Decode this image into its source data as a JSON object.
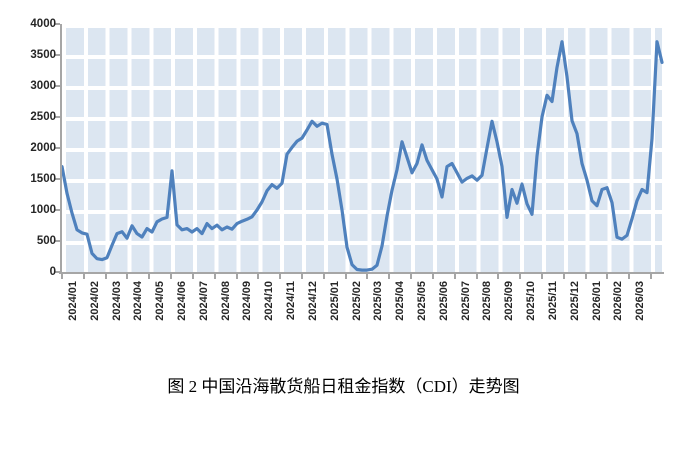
{
  "figure": {
    "caption": "图 2 中国沿海散货船日租金指数（CDI）走势图"
  },
  "colors": {
    "line": "#4F81BD",
    "plot_fill": "#DCE6F1",
    "gridline": "#FFFFFF",
    "axis": "#A6A6A6",
    "tick_label": "#262626"
  },
  "chart_data": {
    "type": "line",
    "title": "图 2 中国沿海散货船日租金指数（CDI）走势图",
    "series_name": "CDI",
    "x_tick_labels": [
      "2024/01",
      "2024/02",
      "2024/03",
      "2024/04",
      "2024/05",
      "2024/06",
      "2024/07",
      "2024/08",
      "2024/09",
      "2024/10",
      "2024/11",
      "2024/12",
      "2025/01",
      "2025/02",
      "2025/03",
      "2025/04",
      "2025/05",
      "2025/06",
      "2025/07",
      "2025/08",
      "2025/09",
      "2025/10",
      "2025/11",
      "2025/12",
      "2026/01",
      "2026/02",
      "2026/03"
    ],
    "y_tick_labels": [
      "0",
      "500",
      "1000",
      "1500",
      "2000",
      "2500",
      "3000",
      "3500",
      "4000"
    ],
    "ylim": [
      0,
      4000
    ],
    "y_step": 500,
    "x_unit": "week",
    "legend": "none",
    "grid": "white gridlines on light blue plot fill, vertical per month, horizontal per 500",
    "values": [
      1700,
      1270,
      950,
      680,
      630,
      610,
      300,
      215,
      200,
      230,
      430,
      620,
      650,
      545,
      745,
      620,
      565,
      700,
      645,
      810,
      855,
      880,
      1630,
      760,
      680,
      700,
      645,
      700,
      620,
      780,
      700,
      755,
      680,
      725,
      690,
      780,
      820,
      850,
      890,
      1000,
      1130,
      1310,
      1410,
      1350,
      1430,
      1900,
      2010,
      2110,
      2160,
      2290,
      2430,
      2350,
      2400,
      2380,
      1900,
      1500,
      1000,
      400,
      120,
      40,
      30,
      30,
      45,
      110,
      420,
      900,
      1320,
      1650,
      2100,
      1850,
      1600,
      1750,
      2050,
      1800,
      1650,
      1500,
      1210,
      1700,
      1750,
      1600,
      1450,
      1510,
      1550,
      1480,
      1560,
      2000,
      2430,
      2100,
      1700,
      880,
      1330,
      1110,
      1420,
      1100,
      930,
      1870,
      2500,
      2850,
      2750,
      3300,
      3714,
      3150,
      2440,
      2230,
      1750,
      1480,
      1150,
      1070,
      1330,
      1360,
      1120,
      560,
      530,
      590,
      860,
      1150,
      1330,
      1280,
      2150,
      3714,
      3380
    ]
  }
}
